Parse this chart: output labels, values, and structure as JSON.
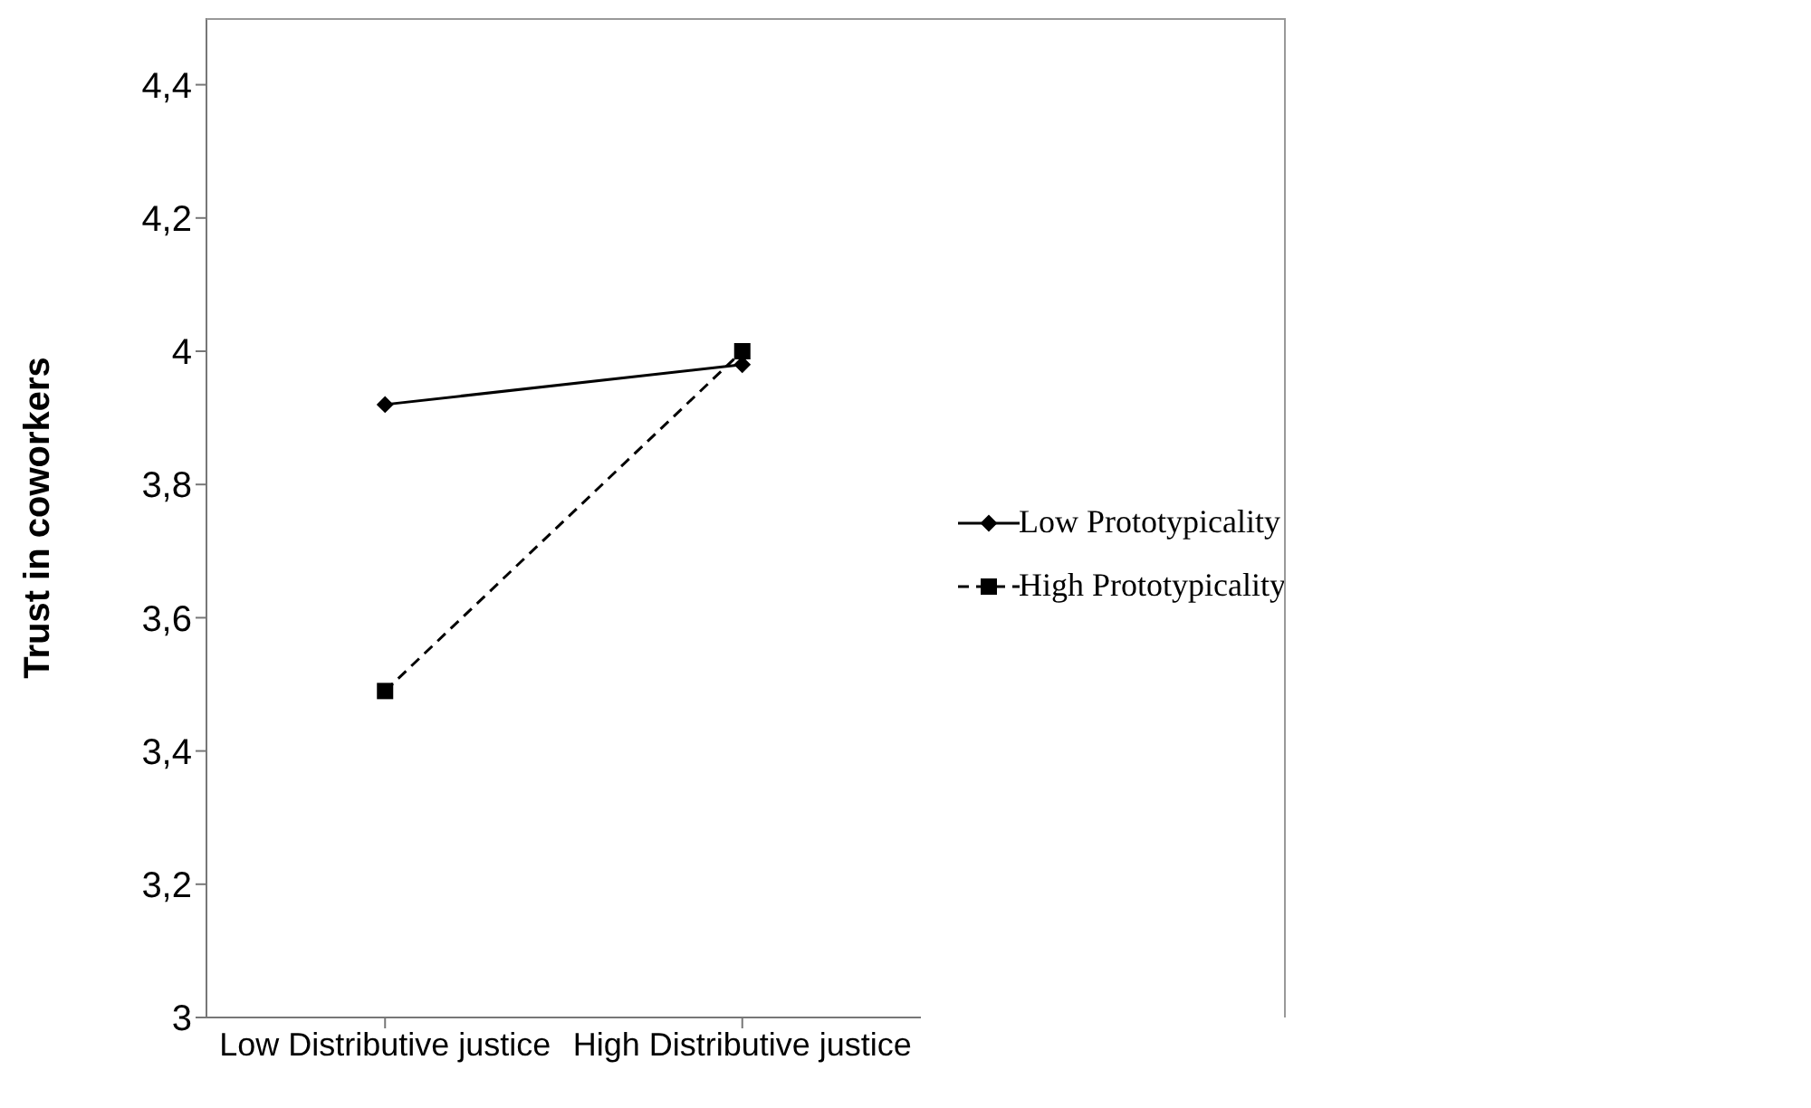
{
  "chart_data": {
    "type": "line",
    "ylabel": "Trust in coworkers",
    "categories": [
      "Low Distributive justice",
      "High Distributive justice"
    ],
    "series": [
      {
        "name": "Low Prototypicality",
        "color": "#000000",
        "values": [
          3.92,
          3.98
        ],
        "marker": "diamond",
        "line_style": "solid"
      },
      {
        "name": "High Prototypicality",
        "color": "#000000",
        "values": [
          3.49,
          4.0
        ],
        "marker": "square",
        "line_style": "dashed"
      }
    ],
    "ylim": [
      3,
      4.5
    ],
    "yticks": [
      3,
      {
        "value": 3.2,
        "label": "3,2"
      },
      {
        "value": 3.4,
        "label": "3,4"
      },
      {
        "value": 3.6,
        "label": "3,6"
      },
      {
        "value": 3.8,
        "label": "3,8"
      },
      4,
      {
        "value": 4.2,
        "label": "4,2"
      },
      {
        "value": 4.4,
        "label": "4,4"
      }
    ],
    "grid": false,
    "legend": "right"
  }
}
